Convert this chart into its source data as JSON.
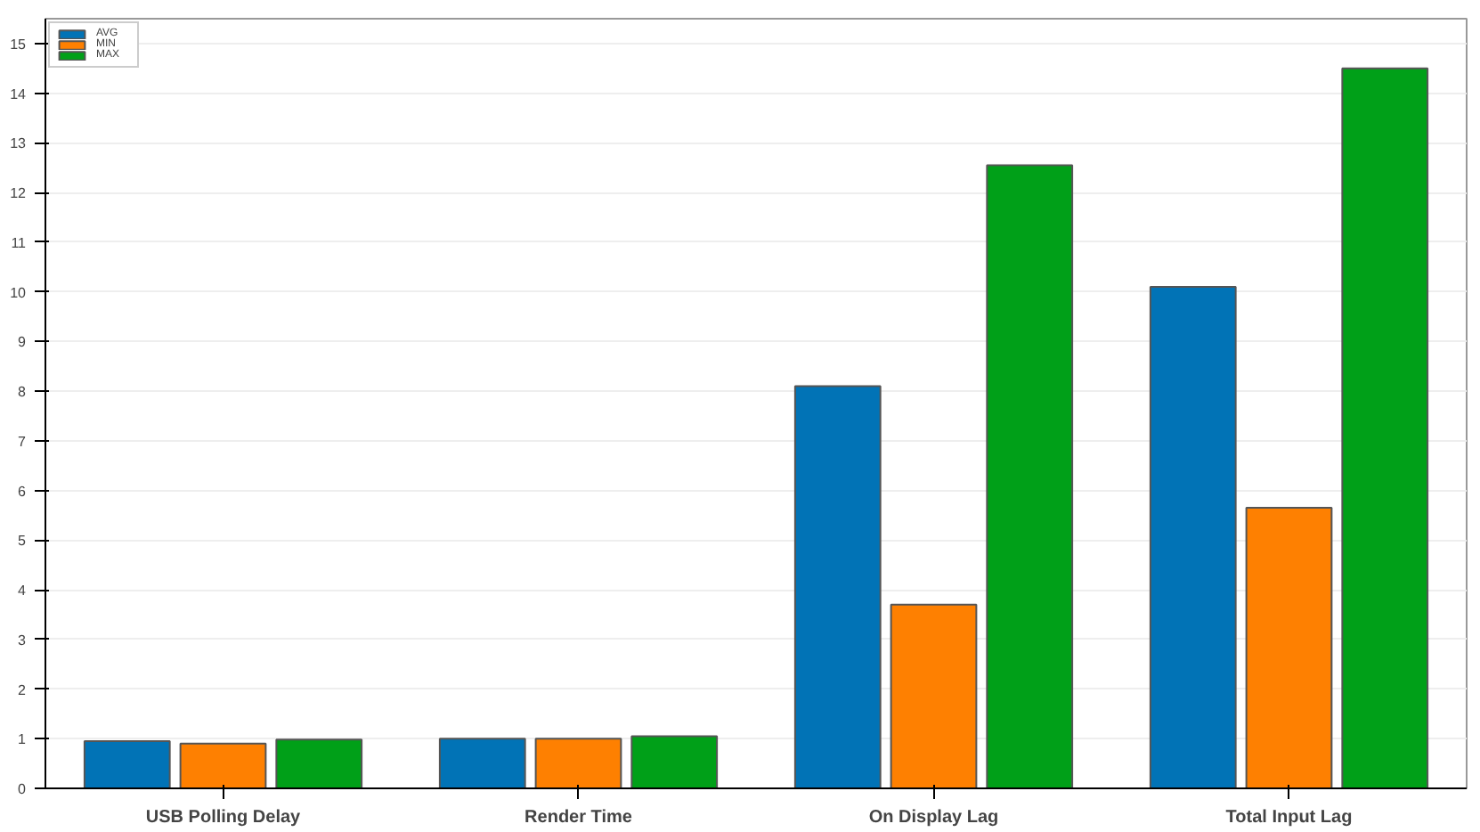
{
  "chart_data": {
    "type": "bar",
    "categories": [
      "USB Polling Delay",
      "Render Time",
      "On Display Lag",
      "Total Input Lag"
    ],
    "series": [
      {
        "name": "AVG",
        "color": "#0173b6",
        "values": [
          0.95,
          1.0,
          8.1,
          10.1
        ]
      },
      {
        "name": "MIN",
        "color": "#fe8001",
        "values": [
          0.9,
          1.0,
          3.7,
          5.65
        ]
      },
      {
        "name": "MAX",
        "color": "#00a018",
        "values": [
          0.98,
          1.05,
          12.55,
          14.5
        ]
      }
    ],
    "ylim": [
      0,
      15.5
    ],
    "yticks": [
      0,
      1,
      2,
      3,
      4,
      5,
      6,
      7,
      8,
      9,
      10,
      11,
      12,
      13,
      14,
      15
    ],
    "grid": "y",
    "legend": "top left"
  }
}
